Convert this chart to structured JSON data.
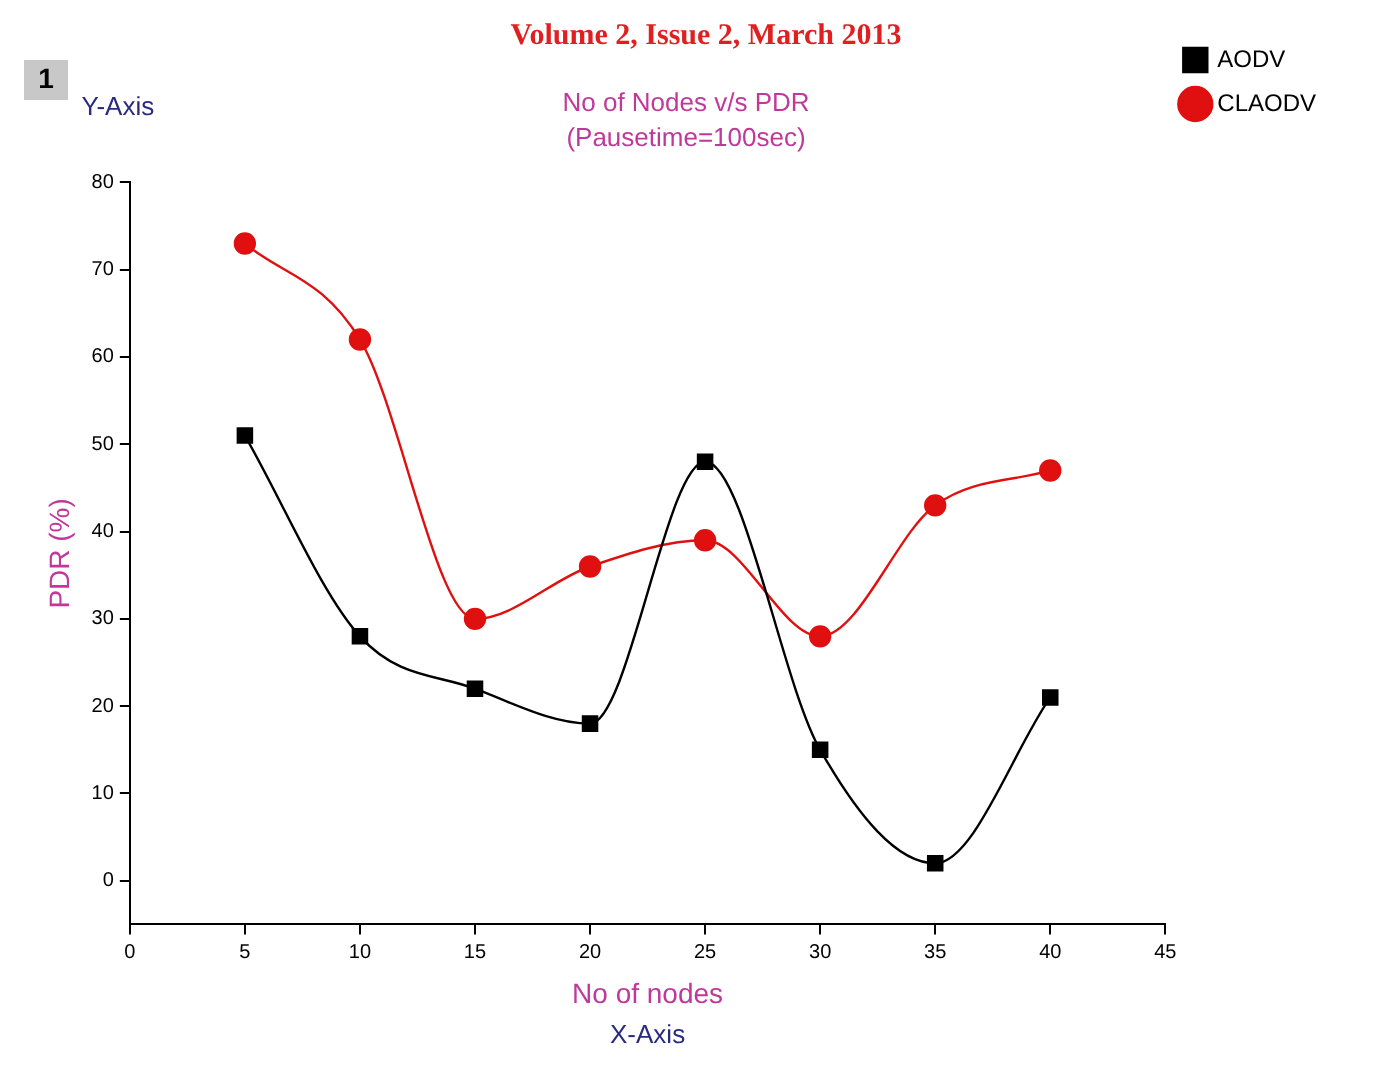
{
  "chart_data": {
    "type": "line",
    "title": "No of Nodes v/s PDR",
    "subtitle": "(Pausetime=100sec)",
    "xlabel": "No of nodes",
    "ylabel": "PDR (%)",
    "annotations": [
      "Volume 2, Issue 2, March 2013",
      "1",
      "Y-Axis",
      "X-Axis"
    ],
    "x": [
      5,
      10,
      15,
      20,
      25,
      30,
      35,
      40
    ],
    "series": [
      {
        "name": "AODV",
        "color": "#000000",
        "marker": "square",
        "values": [
          51,
          28,
          22,
          18,
          48,
          15,
          2,
          21
        ]
      },
      {
        "name": "CLAODV",
        "color": "#e01010",
        "marker": "circle",
        "values": [
          73,
          62,
          30,
          36,
          39,
          28,
          43,
          47
        ]
      }
    ],
    "xlim": [
      0,
      45
    ],
    "xticks": [
      0,
      5,
      10,
      15,
      20,
      25,
      30,
      35,
      40,
      45
    ],
    "ylim": [
      -5,
      80
    ],
    "yticks": [
      0,
      10,
      20,
      30,
      40,
      50,
      60,
      70,
      80
    ],
    "grid": false,
    "legend": "top right",
    "line_style": "solid"
  }
}
